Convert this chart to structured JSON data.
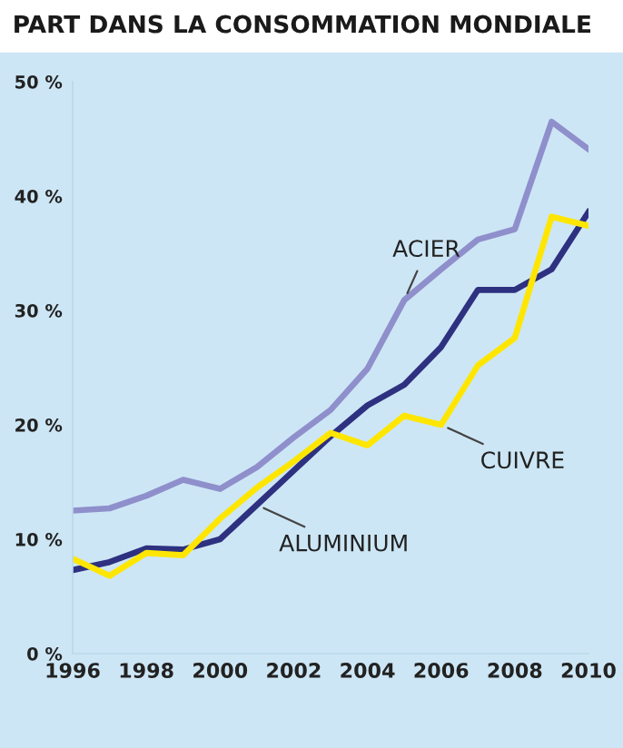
{
  "chart_data": {
    "type": "line",
    "title": "PART DANS LA CONSOMMATION MONDIALE",
    "x": [
      1996,
      1997,
      1998,
      1999,
      2000,
      2001,
      2002,
      2003,
      2004,
      2005,
      2006,
      2007,
      2008,
      2009,
      2010
    ],
    "series": [
      {
        "name": "ACIER",
        "color": "#8f8fcc",
        "values": [
          12.5,
          12.7,
          13.8,
          15.2,
          14.4,
          16.3,
          18.9,
          21.3,
          24.9,
          30.9,
          33.6,
          36.2,
          37.1,
          46.5,
          44.1
        ]
      },
      {
        "name": "ALUMINIUM",
        "color": "#2e3180",
        "values": [
          7.3,
          8.0,
          9.2,
          9.1,
          10.0,
          13.0,
          16.0,
          19.0,
          21.7,
          23.5,
          26.8,
          31.8,
          31.8,
          33.6,
          38.6
        ]
      },
      {
        "name": "CUIVRE",
        "color": "#ffe600",
        "values": [
          8.3,
          6.8,
          8.8,
          8.6,
          11.8,
          14.5,
          16.8,
          19.3,
          18.2,
          20.8,
          20.0,
          25.2,
          27.6,
          38.2,
          37.4
        ]
      }
    ],
    "xlim": [
      1996,
      2010
    ],
    "xticks": [
      1996,
      1998,
      2000,
      2002,
      2004,
      2006,
      2008,
      2010
    ],
    "ylim": [
      0,
      50
    ],
    "yticks": [
      {
        "value": 0,
        "label": "0 %"
      },
      {
        "value": 10,
        "label": "10 %"
      },
      {
        "value": 20,
        "label": "20 %"
      },
      {
        "value": 30,
        "label": "30 %"
      },
      {
        "value": 40,
        "label": "40 %"
      },
      {
        "value": 50,
        "label": "50 %"
      }
    ],
    "grid": false,
    "legend": false,
    "marker": "none",
    "line_style": "solid"
  }
}
